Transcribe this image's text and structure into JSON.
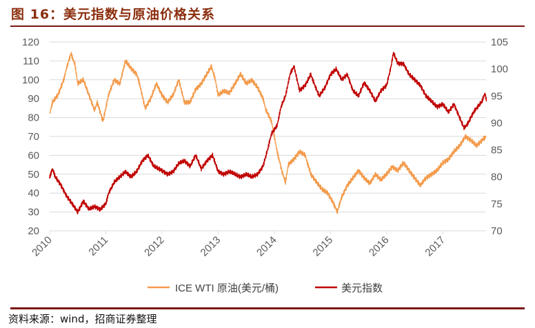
{
  "title": "图 16：美元指数与原油价格关系",
  "source": "资料来源：wind，招商证券整理",
  "colors": {
    "oil": "#F39A4A",
    "dollar": "#C00000",
    "title": "#8B2E0E",
    "rule": "#7B1414",
    "grid": "#D9D9D9"
  },
  "chart_data": {
    "type": "line",
    "title": "美元指数与原油价格关系",
    "xlabel": "",
    "x_ticks": [
      "2010",
      "2011",
      "2012",
      "2013",
      "2014",
      "2015",
      "2016",
      "2017"
    ],
    "x_range": [
      2010,
      2017.77
    ],
    "y_left": {
      "label": "ICE WTI 原油(美元/桶)",
      "range": [
        20,
        120
      ],
      "ticks": [
        "20",
        "30",
        "40",
        "50",
        "60",
        "70",
        "80",
        "90",
        "100",
        "110",
        "120"
      ]
    },
    "y_right": {
      "label": "美元指数",
      "range": [
        70,
        105
      ],
      "ticks": [
        "70",
        "75",
        "80",
        "85",
        "90",
        "95",
        "100",
        "105"
      ]
    },
    "grid": true,
    "legend_position": "bottom",
    "series": [
      {
        "name": "ICE WTI 原油(美元/桶)",
        "axis": "left",
        "points": [
          [
            2010.0,
            82
          ],
          [
            2010.05,
            88
          ],
          [
            2010.15,
            92
          ],
          [
            2010.25,
            100
          ],
          [
            2010.3,
            106
          ],
          [
            2010.38,
            114
          ],
          [
            2010.45,
            108
          ],
          [
            2010.5,
            98
          ],
          [
            2010.6,
            100
          ],
          [
            2010.7,
            92
          ],
          [
            2010.8,
            84
          ],
          [
            2010.85,
            88
          ],
          [
            2010.95,
            78
          ],
          [
            2011.05,
            92
          ],
          [
            2011.15,
            100
          ],
          [
            2011.25,
            98
          ],
          [
            2011.35,
            110
          ],
          [
            2011.45,
            106
          ],
          [
            2011.55,
            103
          ],
          [
            2011.6,
            98
          ],
          [
            2011.7,
            85
          ],
          [
            2011.8,
            90
          ],
          [
            2011.9,
            98
          ],
          [
            2012.0,
            92
          ],
          [
            2012.1,
            88
          ],
          [
            2012.2,
            92
          ],
          [
            2012.3,
            100
          ],
          [
            2012.4,
            88
          ],
          [
            2012.5,
            88
          ],
          [
            2012.6,
            95
          ],
          [
            2012.7,
            98
          ],
          [
            2012.8,
            103
          ],
          [
            2012.88,
            107
          ],
          [
            2012.95,
            100
          ],
          [
            2013.0,
            92
          ],
          [
            2013.1,
            94
          ],
          [
            2013.2,
            93
          ],
          [
            2013.3,
            98
          ],
          [
            2013.4,
            103
          ],
          [
            2013.5,
            98
          ],
          [
            2013.6,
            100
          ],
          [
            2013.7,
            96
          ],
          [
            2013.8,
            90
          ],
          [
            2013.85,
            84
          ],
          [
            2013.95,
            78
          ],
          [
            2014.0,
            70
          ],
          [
            2014.05,
            62
          ],
          [
            2014.1,
            56
          ],
          [
            2014.15,
            50
          ],
          [
            2014.2,
            46
          ],
          [
            2014.25,
            55
          ],
          [
            2014.35,
            58
          ],
          [
            2014.45,
            62
          ],
          [
            2014.55,
            60
          ],
          [
            2014.6,
            55
          ],
          [
            2014.65,
            50
          ],
          [
            2014.75,
            46
          ],
          [
            2014.85,
            42
          ],
          [
            2014.95,
            40
          ],
          [
            2015.05,
            35
          ],
          [
            2015.12,
            30
          ],
          [
            2015.2,
            38
          ],
          [
            2015.3,
            44
          ],
          [
            2015.4,
            48
          ],
          [
            2015.5,
            52
          ],
          [
            2015.6,
            48
          ],
          [
            2015.7,
            45
          ],
          [
            2015.8,
            50
          ],
          [
            2015.9,
            47
          ],
          [
            2016.0,
            50
          ],
          [
            2016.1,
            54
          ],
          [
            2016.2,
            52
          ],
          [
            2016.3,
            56
          ],
          [
            2016.4,
            52
          ],
          [
            2016.5,
            48
          ],
          [
            2016.6,
            44
          ],
          [
            2016.7,
            48
          ],
          [
            2016.8,
            50
          ],
          [
            2016.9,
            52
          ],
          [
            2017.0,
            56
          ],
          [
            2017.1,
            58
          ],
          [
            2017.2,
            62
          ],
          [
            2017.3,
            65
          ],
          [
            2017.4,
            70
          ],
          [
            2017.5,
            68
          ],
          [
            2017.6,
            65
          ],
          [
            2017.7,
            68
          ],
          [
            2017.77,
            70
          ]
        ]
      },
      {
        "name": "美元指数",
        "axis": "right",
        "points": [
          [
            2010.0,
            80
          ],
          [
            2010.05,
            81.5
          ],
          [
            2010.1,
            80
          ],
          [
            2010.2,
            78.5
          ],
          [
            2010.3,
            76.5
          ],
          [
            2010.4,
            75
          ],
          [
            2010.5,
            73.5
          ],
          [
            2010.6,
            75.5
          ],
          [
            2010.7,
            74
          ],
          [
            2010.8,
            74.5
          ],
          [
            2010.9,
            74
          ],
          [
            2011.0,
            75
          ],
          [
            2011.05,
            77
          ],
          [
            2011.15,
            79
          ],
          [
            2011.25,
            80
          ],
          [
            2011.35,
            81
          ],
          [
            2011.45,
            80
          ],
          [
            2011.55,
            81
          ],
          [
            2011.65,
            83
          ],
          [
            2011.75,
            84
          ],
          [
            2011.85,
            82
          ],
          [
            2011.95,
            81.5
          ],
          [
            2012.1,
            80.5
          ],
          [
            2012.2,
            81
          ],
          [
            2012.3,
            82.5
          ],
          [
            2012.4,
            83
          ],
          [
            2012.5,
            82
          ],
          [
            2012.6,
            84
          ],
          [
            2012.7,
            81.5
          ],
          [
            2012.8,
            83
          ],
          [
            2012.9,
            84
          ],
          [
            2013.0,
            81
          ],
          [
            2013.1,
            80.5
          ],
          [
            2013.2,
            81
          ],
          [
            2013.3,
            80.5
          ],
          [
            2013.4,
            80
          ],
          [
            2013.5,
            80.5
          ],
          [
            2013.6,
            80
          ],
          [
            2013.7,
            80.5
          ],
          [
            2013.8,
            82
          ],
          [
            2013.88,
            85
          ],
          [
            2013.95,
            88
          ],
          [
            2014.05,
            89.5
          ],
          [
            2014.12,
            93
          ],
          [
            2014.2,
            95
          ],
          [
            2014.28,
            99
          ],
          [
            2014.35,
            100.5
          ],
          [
            2014.45,
            96
          ],
          [
            2014.55,
            97
          ],
          [
            2014.65,
            99
          ],
          [
            2014.72,
            97
          ],
          [
            2014.8,
            95
          ],
          [
            2014.9,
            96.5
          ],
          [
            2015.0,
            99
          ],
          [
            2015.1,
            100
          ],
          [
            2015.2,
            98
          ],
          [
            2015.3,
            99
          ],
          [
            2015.4,
            96
          ],
          [
            2015.5,
            95
          ],
          [
            2015.6,
            97.5
          ],
          [
            2015.7,
            96
          ],
          [
            2015.8,
            94
          ],
          [
            2015.9,
            96
          ],
          [
            2016.0,
            97
          ],
          [
            2016.08,
            100.5
          ],
          [
            2016.12,
            103
          ],
          [
            2016.2,
            101
          ],
          [
            2016.3,
            101
          ],
          [
            2016.4,
            99
          ],
          [
            2016.5,
            98
          ],
          [
            2016.6,
            97
          ],
          [
            2016.7,
            95
          ],
          [
            2016.8,
            94
          ],
          [
            2016.9,
            93
          ],
          [
            2017.0,
            93.5
          ],
          [
            2017.1,
            92
          ],
          [
            2017.2,
            93.5
          ],
          [
            2017.3,
            91
          ],
          [
            2017.38,
            89
          ],
          [
            2017.45,
            90
          ],
          [
            2017.55,
            92
          ],
          [
            2017.62,
            93
          ],
          [
            2017.7,
            94
          ],
          [
            2017.75,
            95.5
          ],
          [
            2017.78,
            94
          ]
        ]
      }
    ]
  }
}
